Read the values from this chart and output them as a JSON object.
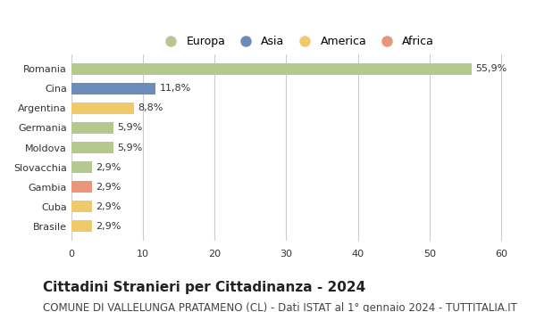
{
  "categories": [
    "Romania",
    "Cina",
    "Argentina",
    "Germania",
    "Moldova",
    "Slovacchia",
    "Gambia",
    "Cuba",
    "Brasile"
  ],
  "values": [
    55.9,
    11.8,
    8.8,
    5.9,
    5.9,
    2.9,
    2.9,
    2.9,
    2.9
  ],
  "labels": [
    "55,9%",
    "11,8%",
    "8,8%",
    "5,9%",
    "5,9%",
    "2,9%",
    "2,9%",
    "2,9%",
    "2,9%"
  ],
  "colors": [
    "#b5c98e",
    "#6b8cba",
    "#f0c96b",
    "#b5c98e",
    "#b5c98e",
    "#b5c98e",
    "#e8957a",
    "#f0c96b",
    "#f0c96b"
  ],
  "legend_labels": [
    "Europa",
    "Asia",
    "America",
    "Africa"
  ],
  "legend_colors": [
    "#b5c98e",
    "#6b8cba",
    "#f0c96b",
    "#e8957a"
  ],
  "title": "Cittadini Stranieri per Cittadinanza - 2024",
  "subtitle": "COMUNE DI VALLELUNGA PRATAMENO (CL) - Dati ISTAT al 1° gennaio 2024 - TUTTITALIA.IT",
  "xlim": [
    0,
    63
  ],
  "xticks": [
    0,
    10,
    20,
    30,
    40,
    50,
    60
  ],
  "background_color": "#ffffff",
  "grid_color": "#cccccc",
  "title_fontsize": 11,
  "subtitle_fontsize": 8.5,
  "bar_label_fontsize": 8,
  "tick_label_fontsize": 8,
  "legend_fontsize": 9
}
